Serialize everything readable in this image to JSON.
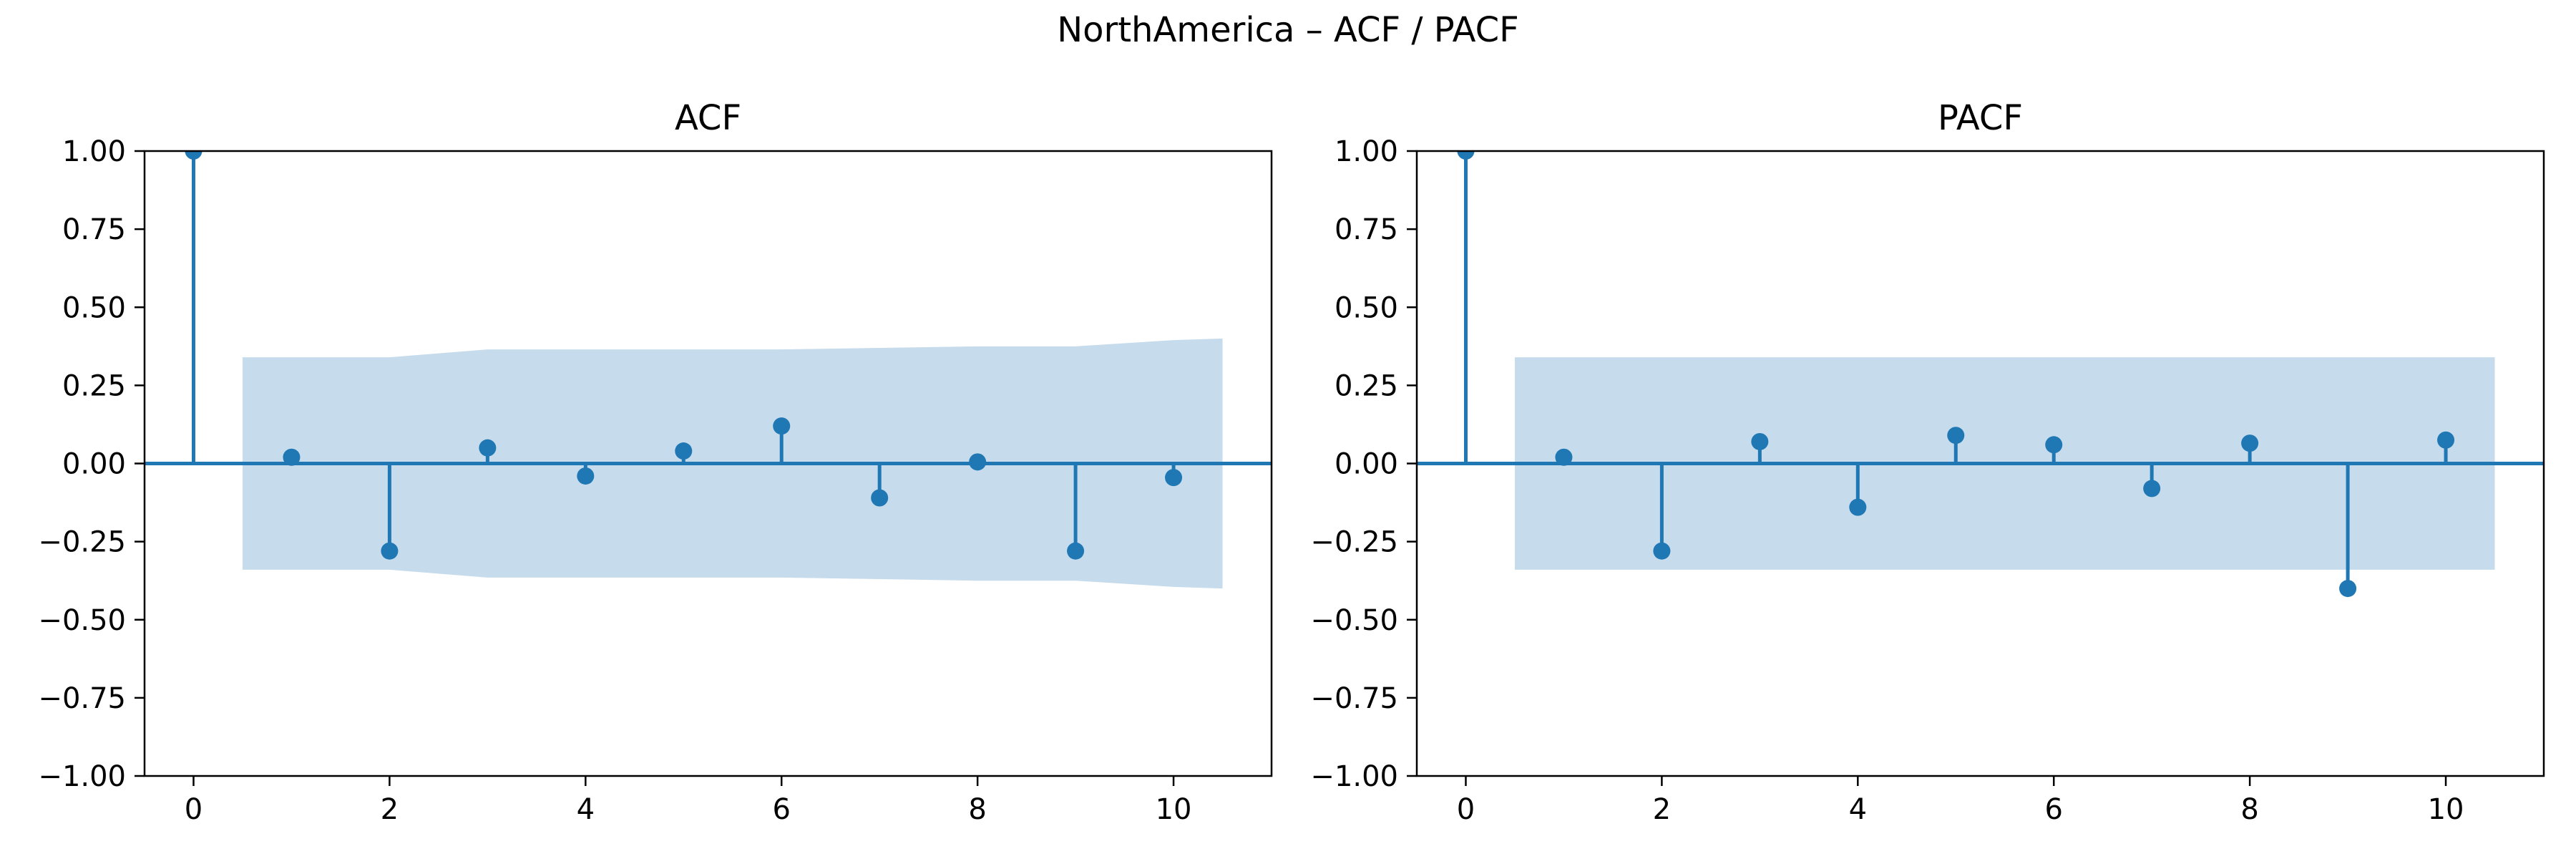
{
  "figure": {
    "title": "NorthAmerica – ACF / PACF"
  },
  "colors": {
    "stem": "#1f77b4",
    "band": "#c6dbec",
    "axis": "#000000"
  },
  "chart_data": [
    {
      "type": "stem",
      "title": "ACF",
      "xlabel": "",
      "ylabel": "",
      "xlim": [
        -0.5,
        11
      ],
      "ylim": [
        -1.0,
        1.0
      ],
      "xticks": [
        "0",
        "2",
        "4",
        "6",
        "8",
        "10"
      ],
      "yticks": [
        "1.00",
        "0.75",
        "0.50",
        "0.25",
        "0.00",
        "−0.25",
        "−0.50",
        "−0.75",
        "−1.00"
      ],
      "grid": false,
      "lags": [
        0,
        1,
        2,
        3,
        4,
        5,
        6,
        7,
        8,
        9,
        10
      ],
      "values": [
        1.0,
        0.02,
        -0.28,
        0.05,
        -0.04,
        0.04,
        0.12,
        -0.11,
        0.005,
        -0.28,
        -0.045
      ],
      "confidence_band": {
        "x": [
          0.5,
          1,
          2,
          3,
          4,
          5,
          6,
          7,
          8,
          9,
          10,
          10.5
        ],
        "upper": [
          0.34,
          0.34,
          0.34,
          0.365,
          0.365,
          0.365,
          0.365,
          0.37,
          0.375,
          0.375,
          0.395,
          0.4
        ],
        "lower": [
          -0.34,
          -0.34,
          -0.34,
          -0.365,
          -0.365,
          -0.365,
          -0.365,
          -0.37,
          -0.375,
          -0.375,
          -0.395,
          -0.4
        ]
      }
    },
    {
      "type": "stem",
      "title": "PACF",
      "xlabel": "",
      "ylabel": "",
      "xlim": [
        -0.5,
        11
      ],
      "ylim": [
        -1.0,
        1.0
      ],
      "xticks": [
        "0",
        "2",
        "4",
        "6",
        "8",
        "10"
      ],
      "yticks": [
        "1.00",
        "0.75",
        "0.50",
        "0.25",
        "0.00",
        "−0.25",
        "−0.50",
        "−0.75",
        "−1.00"
      ],
      "grid": false,
      "lags": [
        0,
        1,
        2,
        3,
        4,
        5,
        6,
        7,
        8,
        9,
        10
      ],
      "values": [
        1.0,
        0.02,
        -0.28,
        0.07,
        -0.14,
        0.09,
        0.06,
        -0.08,
        0.065,
        -0.4,
        0.075
      ],
      "confidence_band": {
        "x": [
          0.5,
          10.5
        ],
        "upper": [
          0.34,
          0.34
        ],
        "lower": [
          -0.34,
          -0.34
        ]
      }
    }
  ]
}
